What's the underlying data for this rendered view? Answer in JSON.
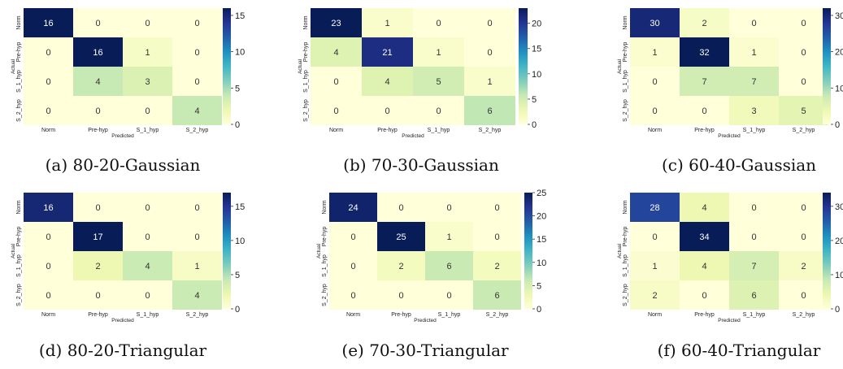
{
  "chart_data": [
    {
      "type": "heatmap",
      "caption": "(a) 80-20-Gaussian",
      "xlabel": "Predicted",
      "ylabel": "Actual",
      "x_categories": [
        "Norm",
        "Pre-hyp",
        "S_1_hyp",
        "S_2_hyp"
      ],
      "y_categories": [
        "Norm",
        "Pre-hyp",
        "S_1_hyp",
        "S_2_hyp"
      ],
      "matrix": [
        [
          16,
          0,
          0,
          0
        ],
        [
          0,
          16,
          1,
          0
        ],
        [
          0,
          4,
          3,
          0
        ],
        [
          0,
          0,
          0,
          4
        ]
      ],
      "colorbar_max": 16,
      "colorbar_ticks": [
        0,
        5,
        10,
        15
      ],
      "colormap": "YlGnBu"
    },
    {
      "type": "heatmap",
      "caption": "(b) 70-30-Gaussian",
      "xlabel": "Predicted",
      "ylabel": "Actual",
      "x_categories": [
        "Norm",
        "Pre-hyp",
        "S_1_hyp",
        "S_2_hyp"
      ],
      "y_categories": [
        "Norm",
        "Pre-hyp",
        "S_1_hyp",
        "S_2_hyp"
      ],
      "matrix": [
        [
          23,
          1,
          0,
          0
        ],
        [
          4,
          21,
          1,
          0
        ],
        [
          0,
          4,
          5,
          1
        ],
        [
          0,
          0,
          0,
          6
        ]
      ],
      "colorbar_max": 23,
      "colorbar_ticks": [
        0,
        5,
        10,
        15,
        20
      ],
      "colormap": "YlGnBu"
    },
    {
      "type": "heatmap",
      "caption": "(c) 60-40-Gaussian",
      "xlabel": "Predicted",
      "ylabel": "Actual",
      "x_categories": [
        "Norm",
        "Pre-hyp",
        "S_1_hyp",
        "S_2_hyp"
      ],
      "y_categories": [
        "Norm",
        "Pre-hyp",
        "S_1_hyp",
        "S_2_hyp"
      ],
      "matrix": [
        [
          30,
          2,
          0,
          0
        ],
        [
          1,
          32,
          1,
          0
        ],
        [
          0,
          7,
          7,
          0
        ],
        [
          0,
          0,
          3,
          5
        ]
      ],
      "colorbar_max": 32,
      "colorbar_ticks": [
        0,
        10,
        20,
        30
      ],
      "colormap": "YlGnBu"
    },
    {
      "type": "heatmap",
      "caption": "(d) 80-20-Triangular",
      "xlabel": "Predicted",
      "ylabel": "Actual",
      "x_categories": [
        "Norm",
        "Pre-hyp",
        "S_1_hyp",
        "S_2_hyp"
      ],
      "y_categories": [
        "Norm",
        "Pre-hyp",
        "S_1_hyp",
        "S_2_hyp"
      ],
      "matrix": [
        [
          16,
          0,
          0,
          0
        ],
        [
          0,
          17,
          0,
          0
        ],
        [
          0,
          2,
          4,
          1
        ],
        [
          0,
          0,
          0,
          4
        ]
      ],
      "colorbar_max": 17,
      "colorbar_ticks": [
        0,
        5,
        10,
        15
      ],
      "colormap": "YlGnBu"
    },
    {
      "type": "heatmap",
      "caption": "(e) 70-30-Triangular",
      "xlabel": "Predicted",
      "ylabel": "Actual",
      "x_categories": [
        "Norm",
        "Pre-hyp",
        "S_1_hyp",
        "S_2_hyp"
      ],
      "y_categories": [
        "Norm",
        "Pre-hyp",
        "S_1_hyp",
        "S_2_hyp"
      ],
      "matrix": [
        [
          24,
          0,
          0,
          0
        ],
        [
          0,
          25,
          1,
          0
        ],
        [
          0,
          2,
          6,
          2
        ],
        [
          0,
          0,
          0,
          6
        ]
      ],
      "colorbar_max": 25,
      "colorbar_ticks": [
        0,
        5,
        10,
        15,
        20,
        25
      ],
      "colormap": "YlGnBu"
    },
    {
      "type": "heatmap",
      "caption": "(f) 60-40-Triangular",
      "xlabel": "Predicted",
      "ylabel": "Actual",
      "x_categories": [
        "Norm",
        "Pre-hyp",
        "S_1_hyp",
        "S_2_hyp"
      ],
      "y_categories": [
        "Norm",
        "Pre-hyp",
        "S_1_hyp",
        "S_2_hyp"
      ],
      "matrix": [
        [
          28,
          4,
          0,
          0
        ],
        [
          0,
          34,
          0,
          0
        ],
        [
          1,
          4,
          7,
          2
        ],
        [
          2,
          0,
          6,
          0
        ]
      ],
      "colorbar_max": 34,
      "colorbar_ticks": [
        0,
        10,
        20,
        30
      ],
      "colormap": "YlGnBu"
    }
  ]
}
